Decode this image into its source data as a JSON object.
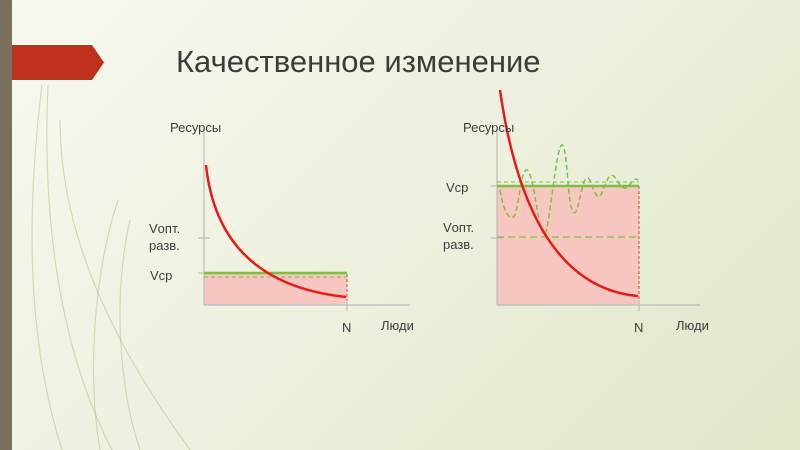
{
  "slide": {
    "title": "Качественное изменение",
    "colors": {
      "accent": "#c0311c",
      "curve": "#e81b14",
      "fill": "#f7c6c0",
      "green": "#7ac142",
      "left_bar": "#79705e"
    }
  },
  "left_diagram": {
    "y_axis_label": "Ресурсы",
    "x_axis_label": "Люди",
    "x_tick_label": "N",
    "upper_label_line1": "Vопт.",
    "upper_label_line2": "разв.",
    "lower_label": "Vср"
  },
  "right_diagram": {
    "y_axis_label": "Ресурсы",
    "x_axis_label": "Люди",
    "x_tick_label": "N",
    "upper_label": "Vср",
    "lower_label_line1": "Vопт.",
    "lower_label_line2": "разв."
  }
}
